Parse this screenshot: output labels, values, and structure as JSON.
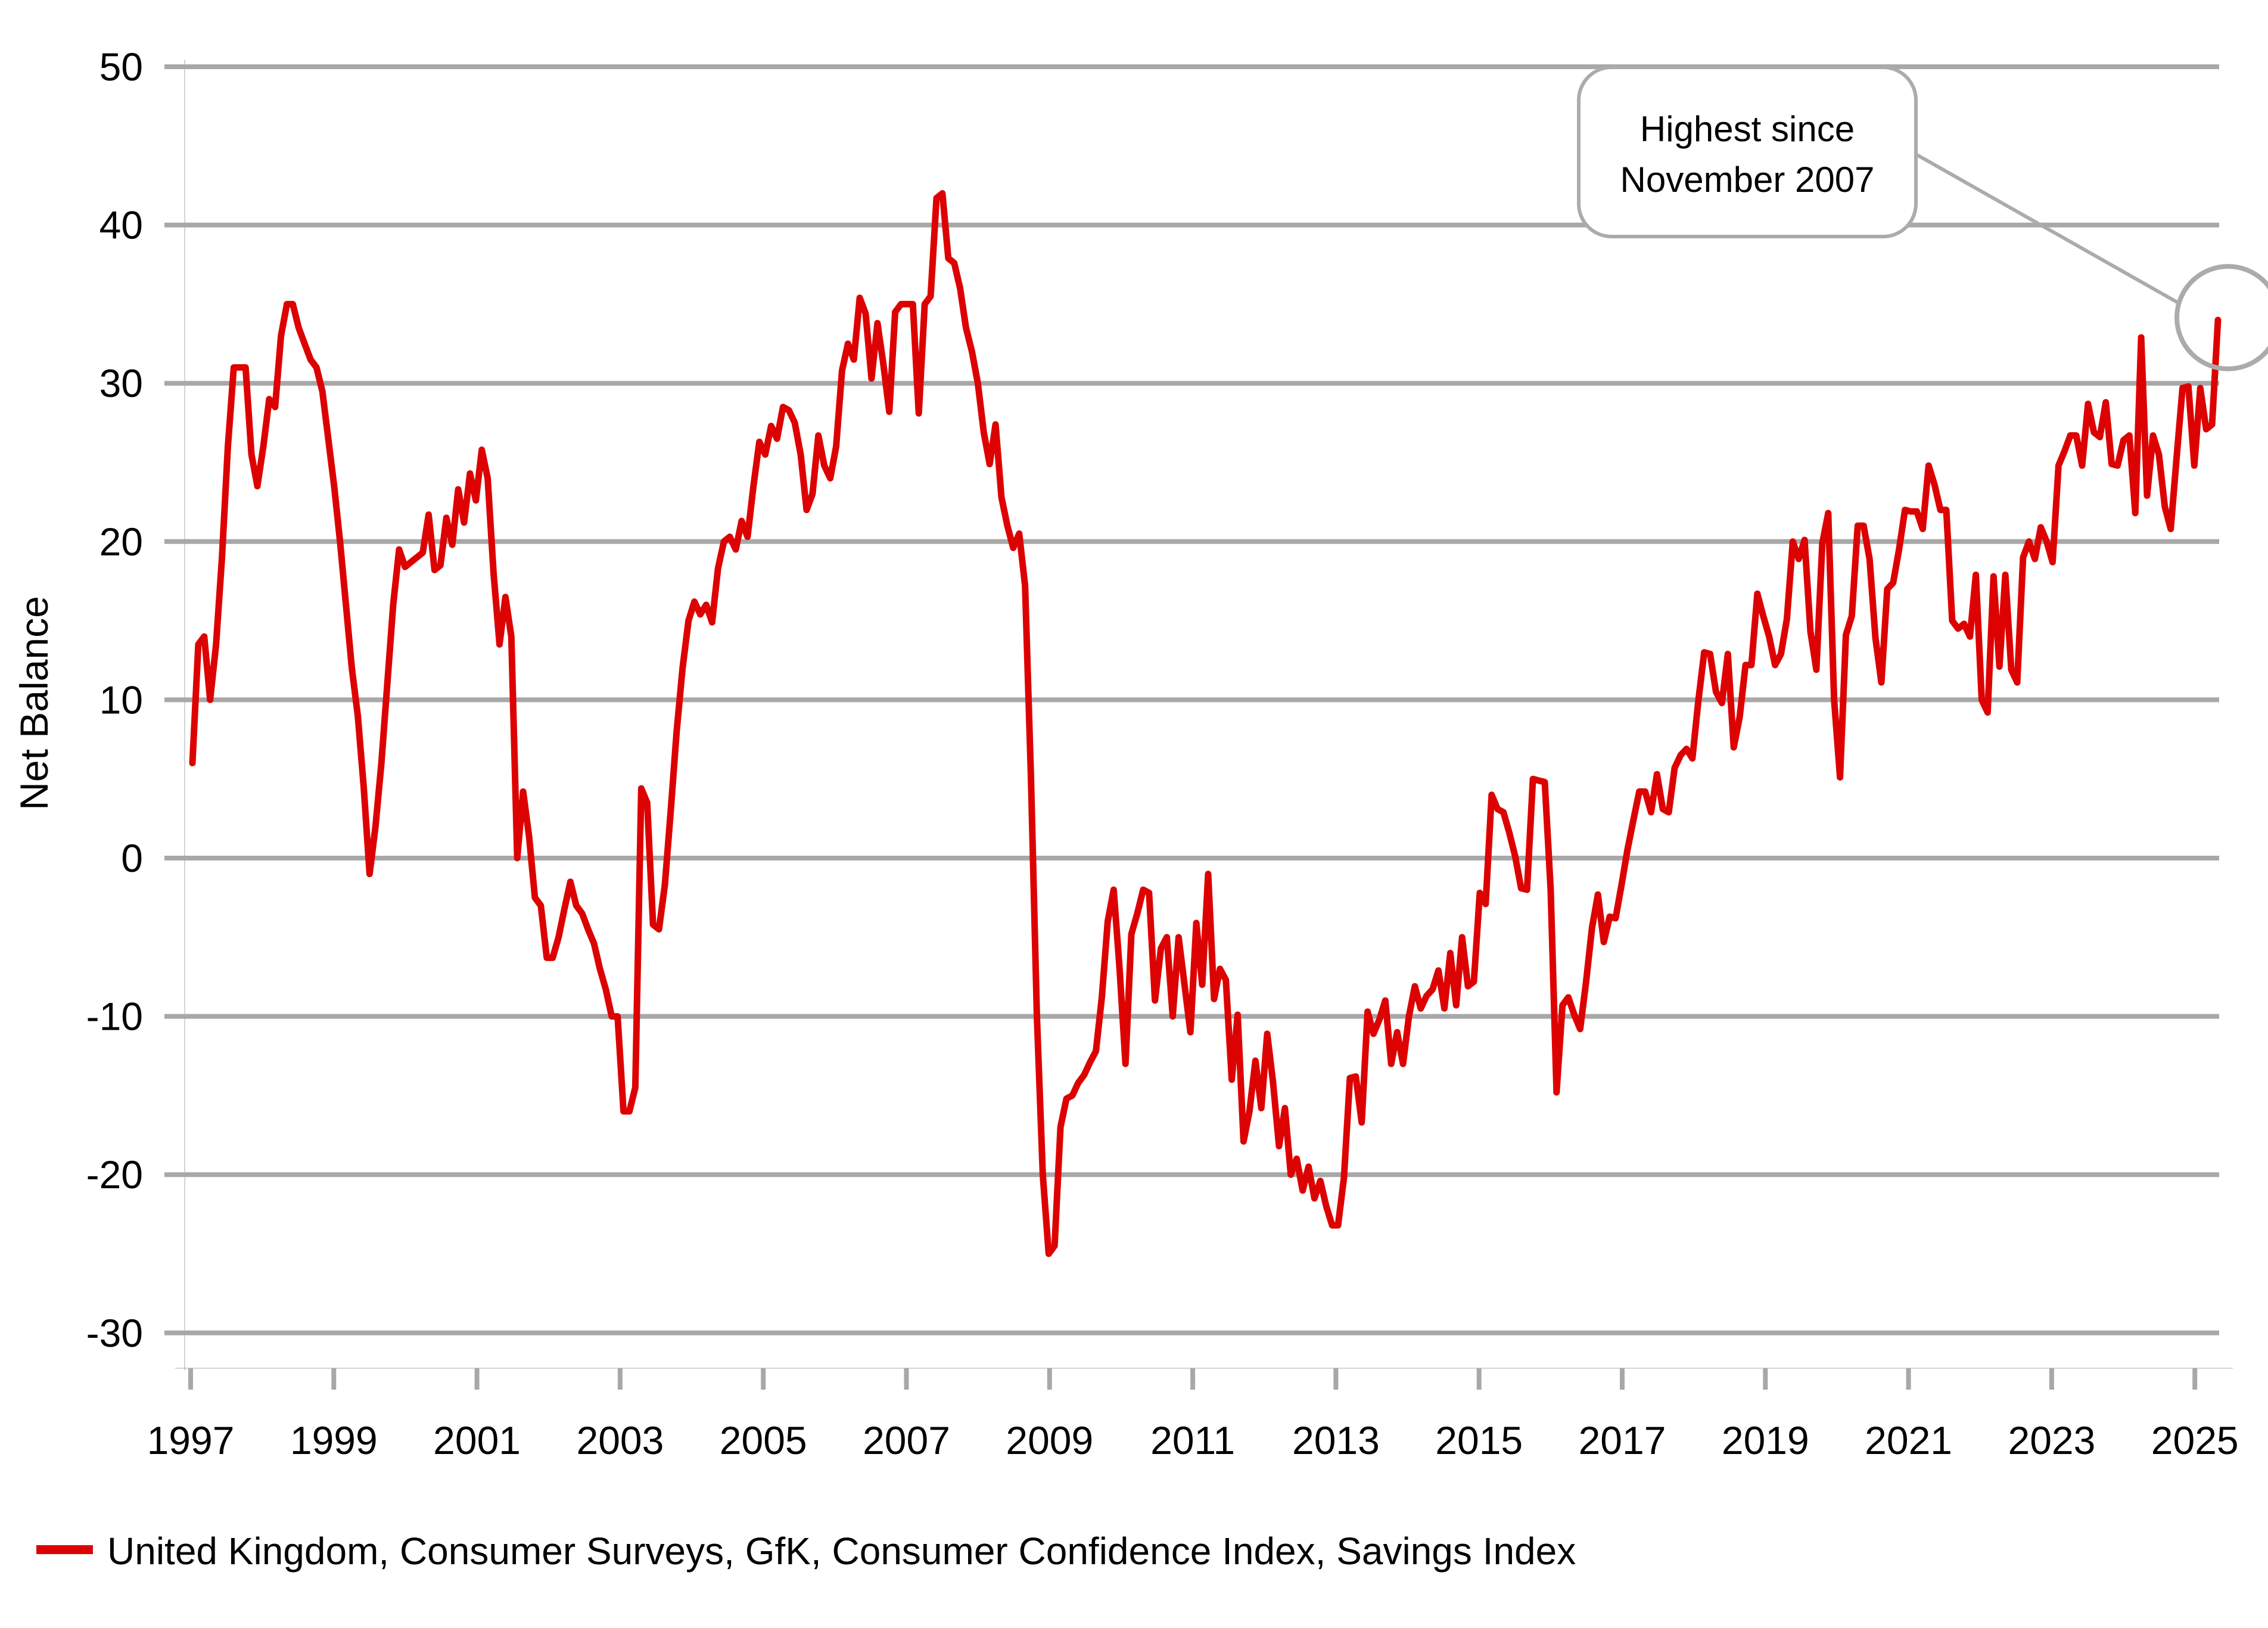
{
  "annotation": {
    "line1": "Highest since",
    "line2": "November 2007"
  },
  "y_axis": {
    "label": "Net Balance",
    "ticks": [
      50,
      40,
      30,
      20,
      10,
      0,
      -10,
      -20,
      -30
    ]
  },
  "x_axis": {
    "ticks": [
      1997,
      1999,
      2001,
      2003,
      2005,
      2007,
      2009,
      2011,
      2013,
      2015,
      2017,
      2019,
      2021,
      2023,
      2025
    ]
  },
  "legend": {
    "label": "United Kingdom, Consumer Surveys, GfK, Consumer Confidence Index, Savings Index"
  },
  "colors": {
    "series": "#dd0202",
    "grid": "#a8a8a8",
    "annotation": "#ababab",
    "text": "#000000",
    "background": "#ffffff"
  },
  "chart_data": {
    "type": "line",
    "title": "",
    "ylabel": "Net Balance",
    "xlabel": "",
    "ylim": [
      -33,
      51
    ],
    "grid": "horizontal",
    "legend_position": "bottom-left",
    "x_start": "1997-01",
    "x_end": "2025-08",
    "frequency": "monthly",
    "annotation_text": "Highest since November 2007",
    "annotation_target": "last point (Aug 2025, value 34, highest since November 2007)",
    "series": [
      {
        "name": "United Kingdom, Consumer Surveys, GfK, Consumer Confidence Index, Savings Index",
        "values": [
          6,
          13.5,
          14,
          10,
          13.5,
          19,
          26,
          31,
          31,
          31,
          25.5,
          23.5,
          26,
          29,
          28.5,
          33,
          35,
          35,
          33.5,
          32.5,
          31.5,
          31,
          29.5,
          26.5,
          23.5,
          20,
          16,
          12,
          9,
          4.5,
          -1,
          2,
          6,
          11,
          16,
          19.5,
          18.4,
          18.7,
          19,
          19.3,
          21.7,
          18.2,
          18.5,
          21.5,
          19.8,
          23.3,
          21.2,
          24.3,
          22.6,
          25.8,
          24,
          18,
          13.5,
          16.5,
          14,
          0,
          4.2,
          1.4,
          -2.5,
          -3,
          -6.3,
          -6.3,
          -5,
          -3.2,
          -1.5,
          -3,
          -3.5,
          -4.5,
          -5.4,
          -7,
          -8.3,
          -10,
          -10,
          -16,
          -16,
          -14.5,
          4.4,
          3.5,
          -4.2,
          -4.5,
          -1.7,
          3,
          8,
          12,
          15,
          16.2,
          15.4,
          16,
          14.9,
          18.3,
          20,
          20.3,
          19.5,
          21.3,
          20.3,
          23.5,
          26.3,
          25.5,
          27.3,
          26.5,
          28.5,
          28.3,
          27.5,
          25.5,
          22,
          23,
          26.7,
          24.8,
          24,
          26,
          30.8,
          32.5,
          31.5,
          35.4,
          34.4,
          30.3,
          33.8,
          31.2,
          28.2,
          34.5,
          35,
          35,
          35,
          28.1,
          35,
          35.5,
          41.7,
          42,
          37.9,
          37.6,
          36,
          33.5,
          32,
          30,
          26.9,
          24.9,
          27.4,
          22.8,
          21,
          19.6,
          20.5,
          17.2,
          5,
          -10,
          -20,
          -25,
          -24.5,
          -17,
          -15.2,
          -15,
          -14.2,
          -13.7,
          -12.9,
          -12.2,
          -8.8,
          -4,
          -2,
          -7,
          -13,
          -4.8,
          -3.5,
          -2,
          -2.2,
          -9,
          -5.7,
          -5,
          -10,
          -5,
          -8,
          -11,
          -4.1,
          -8,
          -1,
          -8.9,
          -7,
          -7.7,
          -14,
          -9.9,
          -17.9,
          -16,
          -12.8,
          -15.8,
          -11.1,
          -14.2,
          -18.2,
          -15.8,
          -20,
          -19,
          -21,
          -19.5,
          -21.5,
          -20.4,
          -22,
          -23.2,
          -23.2,
          -20.2,
          -13.9,
          -13.8,
          -16.7,
          -9.7,
          -11.1,
          -10.2,
          -9,
          -13,
          -11,
          -13,
          -10,
          -8.1,
          -9.5,
          -8.7,
          -8.3,
          -7.1,
          -9.5,
          -6,
          -9.3,
          -5,
          -8.1,
          -7.8,
          -2.2,
          -2.9,
          4,
          3.1,
          2.9,
          1.6,
          0.1,
          -1.9,
          -2,
          5,
          4.9,
          4.8,
          -2,
          -14.8,
          -9.3,
          -8.8,
          -9.9,
          -10.8,
          -7.8,
          -4.4,
          -2.3,
          -5.3,
          -3.7,
          -3.8,
          -1.7,
          0.5,
          2.4,
          4.2,
          4.2,
          2.9,
          5.3,
          3.1,
          2.9,
          5.7,
          6.5,
          6.9,
          6.3,
          9.9,
          13,
          12.9,
          10.5,
          9.8,
          12.9,
          7,
          8.9,
          12.2,
          12.2,
          16.7,
          15.3,
          14,
          12.2,
          12.9,
          15.1,
          20,
          18.9,
          20.1,
          14.3,
          11.9,
          19.9,
          21.8,
          10,
          5.1,
          14.1,
          15.3,
          21,
          21,
          18.9,
          13.9,
          11.1,
          17,
          17.4,
          19.5,
          22,
          21.9,
          21.9,
          20.8,
          24.8,
          23.6,
          22,
          22,
          15,
          14.5,
          14.8,
          14,
          17.9,
          10,
          9.2,
          17.8,
          12.1,
          17.9,
          11.9,
          11.1,
          19,
          20,
          18.9,
          20.9,
          20,
          18.7,
          24.8,
          25.7,
          26.7,
          26.7,
          24.8,
          28.7,
          26.9,
          26.6,
          28.8,
          24.9,
          24.8,
          26.4,
          26.7,
          21.8,
          32.9,
          22.9,
          26.7,
          25.5,
          22.2,
          20.8,
          25.3,
          29.7,
          29.8,
          24.8,
          29.7,
          27.1,
          27.4,
          34
        ]
      }
    ]
  }
}
